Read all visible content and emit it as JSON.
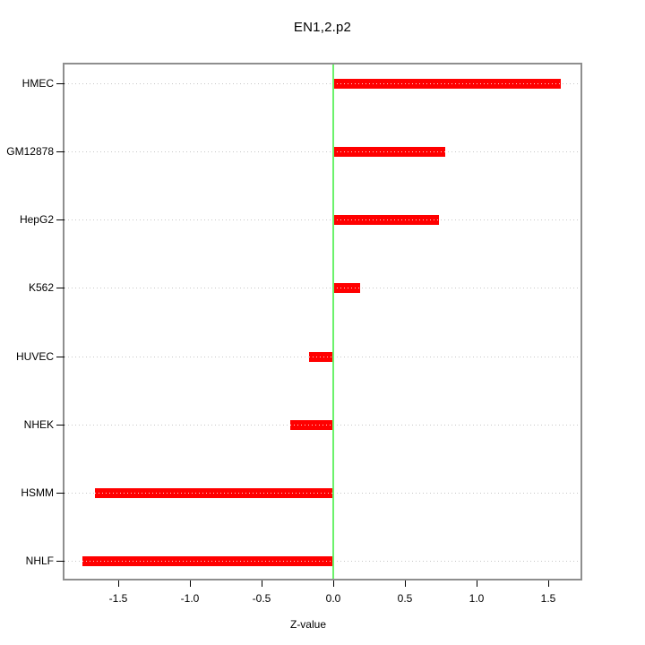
{
  "title": "EN1,2.p2",
  "xlabel": "Z-value",
  "colors": {
    "bar": "#ff0000",
    "zero_line": "#6bf26b",
    "grid": "#c7c7c7",
    "box_border": "#8e8e8e",
    "text": "#000000"
  },
  "chart_data": {
    "type": "bar",
    "orientation": "horizontal",
    "title": "EN1,2.p2",
    "xlabel": "Z-value",
    "ylabel": "",
    "categories": [
      "HMEC",
      "GM12878",
      "HepG2",
      "K562",
      "HUVEC",
      "NHEK",
      "HSMM",
      "NHLF"
    ],
    "values": [
      1.59,
      0.78,
      0.74,
      0.19,
      -0.17,
      -0.3,
      -1.66,
      -1.75
    ],
    "xlim": [
      -1.875,
      1.725
    ],
    "xticks": [
      -1.5,
      -1.0,
      -0.5,
      0.0,
      0.5,
      1.0,
      1.5
    ],
    "grid": "dotted horizontal line per category",
    "zero_line": 0,
    "legend": "none"
  }
}
